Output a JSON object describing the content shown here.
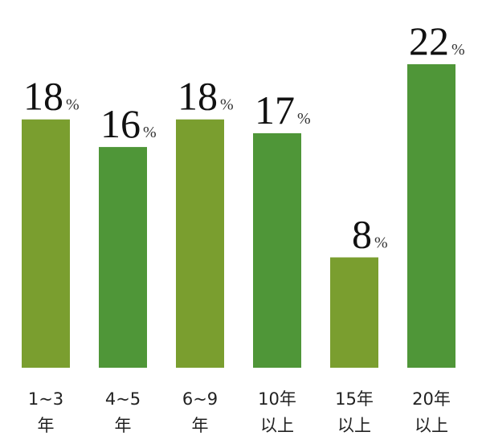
{
  "chart_data": {
    "type": "bar",
    "categories": [
      [
        "1~3",
        "年"
      ],
      [
        "4~5",
        "年"
      ],
      [
        "6~9",
        "年"
      ],
      [
        "10年",
        "以上"
      ],
      [
        "15年",
        "以上"
      ],
      [
        "20年",
        "以上"
      ]
    ],
    "values": [
      18,
      16,
      18,
      17,
      8,
      22
    ],
    "unit": "%",
    "colors": [
      "#7a9e2f",
      "#4f9638",
      "#7a9e2f",
      "#4f9638",
      "#7a9e2f",
      "#4f9638"
    ]
  }
}
